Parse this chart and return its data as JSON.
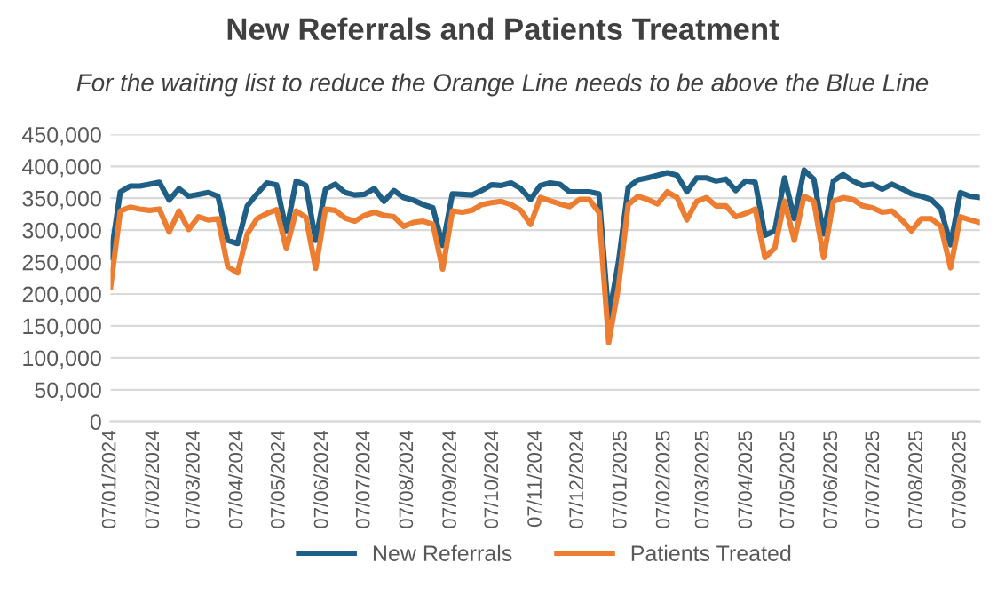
{
  "chart_data": {
    "type": "line",
    "title": "New Referrals and Patients Treatment",
    "subtitle": "For the waiting list to reduce the Orange Line needs to be above the Blue Line",
    "x": [
      "2024-01-07",
      "2024-01-14",
      "2024-01-21",
      "2024-01-28",
      "2024-02-04",
      "2024-02-11",
      "2024-02-18",
      "2024-02-25",
      "2024-03-03",
      "2024-03-10",
      "2024-03-17",
      "2024-03-24",
      "2024-03-31",
      "2024-04-07",
      "2024-04-14",
      "2024-04-21",
      "2024-04-28",
      "2024-05-05",
      "2024-05-12",
      "2024-05-19",
      "2024-05-26",
      "2024-06-02",
      "2024-06-09",
      "2024-06-16",
      "2024-06-23",
      "2024-06-30",
      "2024-07-07",
      "2024-07-14",
      "2024-07-21",
      "2024-07-28",
      "2024-08-04",
      "2024-08-11",
      "2024-08-18",
      "2024-08-25",
      "2024-09-01",
      "2024-09-08",
      "2024-09-15",
      "2024-09-22",
      "2024-09-29",
      "2024-10-06",
      "2024-10-13",
      "2024-10-20",
      "2024-10-27",
      "2024-11-03",
      "2024-11-10",
      "2024-11-17",
      "2024-11-24",
      "2024-12-01",
      "2024-12-08",
      "2024-12-15",
      "2024-12-22",
      "2024-12-29",
      "2025-01-05",
      "2025-01-12",
      "2025-01-19",
      "2025-01-26",
      "2025-02-02",
      "2025-02-09",
      "2025-02-16",
      "2025-02-23",
      "2025-03-02",
      "2025-03-09",
      "2025-03-16",
      "2025-03-23",
      "2025-03-30",
      "2025-04-06",
      "2025-04-13",
      "2025-04-20",
      "2025-04-27",
      "2025-05-04",
      "2025-05-11",
      "2025-05-18",
      "2025-05-25",
      "2025-06-01",
      "2025-06-08",
      "2025-06-15",
      "2025-06-22",
      "2025-06-29",
      "2025-07-06",
      "2025-07-13",
      "2025-07-20",
      "2025-07-27",
      "2025-08-03",
      "2025-08-10",
      "2025-08-17",
      "2025-08-24",
      "2025-08-31",
      "2025-09-07",
      "2025-09-14",
      "2025-09-21"
    ],
    "series": [
      {
        "name": "New Referrals",
        "color": "#1f5f85",
        "values": [
          257000,
          360000,
          369000,
          369000,
          372000,
          375000,
          347000,
          365000,
          353000,
          356000,
          359000,
          353000,
          284000,
          279000,
          338000,
          357000,
          374000,
          371000,
          299000,
          377000,
          370000,
          284000,
          364000,
          372000,
          359000,
          355000,
          356000,
          365000,
          345000,
          362000,
          351000,
          347000,
          340000,
          335000,
          276000,
          357000,
          356000,
          355000,
          362000,
          371000,
          370000,
          374000,
          365000,
          348000,
          370000,
          374000,
          372000,
          360000,
          360000,
          360000,
          357000,
          163000,
          250000,
          367000,
          379000,
          382000,
          386000,
          390000,
          386000,
          360000,
          382000,
          382000,
          377000,
          380000,
          362000,
          377000,
          375000,
          292000,
          299000,
          382000,
          318000,
          394000,
          380000,
          294000,
          377000,
          387000,
          377000,
          370000,
          372000,
          364000,
          372000,
          365000,
          357000,
          353000,
          348000,
          333000,
          277000,
          359000,
          353000,
          351000
        ]
      },
      {
        "name": "Patients Treated",
        "color": "#ed7d31",
        "values": [
          211000,
          330000,
          336000,
          333000,
          331000,
          333000,
          297000,
          330000,
          301000,
          321000,
          316000,
          318000,
          243000,
          233000,
          294000,
          318000,
          326000,
          332000,
          271000,
          330000,
          320000,
          240000,
          333000,
          331000,
          319000,
          314000,
          323000,
          328000,
          323000,
          321000,
          306000,
          312000,
          314000,
          309000,
          239000,
          330000,
          328000,
          331000,
          340000,
          343000,
          345000,
          340000,
          331000,
          309000,
          351000,
          346000,
          341000,
          337000,
          348000,
          348000,
          328000,
          124000,
          211000,
          340000,
          353000,
          348000,
          341000,
          360000,
          351000,
          316000,
          345000,
          351000,
          338000,
          338000,
          321000,
          326000,
          333000,
          257000,
          272000,
          345000,
          284000,
          353000,
          345000,
          257000,
          345000,
          351000,
          348000,
          338000,
          335000,
          328000,
          330000,
          316000,
          299000,
          318000,
          318000,
          306000,
          241000,
          321000,
          316000,
          312000
        ]
      }
    ],
    "xlim": [
      "2024-01-07",
      "2025-09-21"
    ],
    "xticks": [
      {
        "value": "2024-01-07",
        "label": "07/01/2024"
      },
      {
        "value": "2024-02-07",
        "label": "07/02/2024"
      },
      {
        "value": "2024-03-07",
        "label": "07/03/2024"
      },
      {
        "value": "2024-04-07",
        "label": "07/04/2024"
      },
      {
        "value": "2024-05-07",
        "label": "07/05/2024"
      },
      {
        "value": "2024-06-07",
        "label": "07/06/2024"
      },
      {
        "value": "2024-07-07",
        "label": "07/07/2024"
      },
      {
        "value": "2024-08-07",
        "label": "07/08/2024"
      },
      {
        "value": "2024-09-07",
        "label": "07/09/2024"
      },
      {
        "value": "2024-10-07",
        "label": "07/10/2024"
      },
      {
        "value": "2024-11-07",
        "label": "07/11/2024"
      },
      {
        "value": "2024-12-07",
        "label": "07/12/2024"
      },
      {
        "value": "2025-01-07",
        "label": "07/01/2025"
      },
      {
        "value": "2025-02-07",
        "label": "07/02/2025"
      },
      {
        "value": "2025-03-07",
        "label": "07/03/2025"
      },
      {
        "value": "2025-04-07",
        "label": "07/04/2025"
      },
      {
        "value": "2025-05-07",
        "label": "07/05/2025"
      },
      {
        "value": "2025-06-07",
        "label": "07/06/2025"
      },
      {
        "value": "2025-07-07",
        "label": "07/07/2025"
      },
      {
        "value": "2025-08-07",
        "label": "07/08/2025"
      },
      {
        "value": "2025-09-07",
        "label": "07/09/2025"
      }
    ],
    "ylim": [
      0,
      450000
    ],
    "yticks": [
      {
        "value": 0,
        "label": "0"
      },
      {
        "value": 50000,
        "label": "50,000"
      },
      {
        "value": 100000,
        "label": "100,000"
      },
      {
        "value": 150000,
        "label": "150,000"
      },
      {
        "value": 200000,
        "label": "200,000"
      },
      {
        "value": 250000,
        "label": "250,000"
      },
      {
        "value": 300000,
        "label": "300,000"
      },
      {
        "value": 350000,
        "label": "350,000"
      },
      {
        "value": 400000,
        "label": "400,000"
      },
      {
        "value": 450000,
        "label": "450,000"
      }
    ],
    "grid": "y",
    "legend": "bottom",
    "marker": "none",
    "line_style": "solid"
  }
}
